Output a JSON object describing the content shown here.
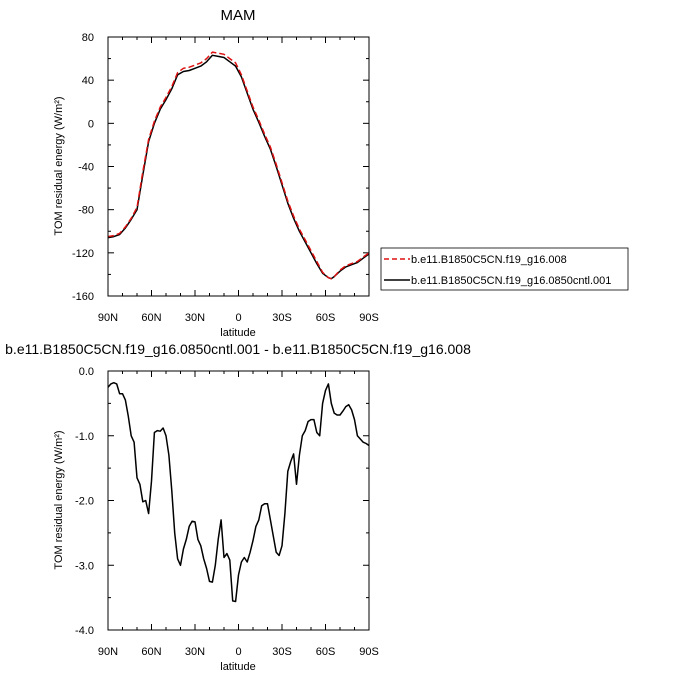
{
  "chart_data": [
    {
      "type": "line",
      "title": "MAM",
      "xlabel": "latitude",
      "ylabel": "TOM residual energy (W/m²)",
      "x_ticks": [
        "90N",
        "60N",
        "30N",
        "0",
        "30S",
        "60S",
        "90S"
      ],
      "y_ticks": [
        80,
        40,
        0,
        -40,
        -80,
        -120,
        -160
      ],
      "xlim": [
        90,
        -90
      ],
      "ylim": [
        -160,
        80
      ],
      "legend": "outside-right",
      "x": [
        90,
        86,
        82,
        78,
        74,
        70,
        66,
        62,
        58,
        54,
        50,
        46,
        42,
        38,
        34,
        30,
        26,
        22,
        18,
        14,
        10,
        6,
        2,
        -2,
        -6,
        -10,
        -14,
        -18,
        -22,
        -26,
        -30,
        -34,
        -38,
        -42,
        -46,
        -50,
        -54,
        -58,
        -62,
        -64,
        -66,
        -70,
        -74,
        -78,
        -82,
        -86,
        -90
      ],
      "series": [
        {
          "name": "b.e11.B1850C5CN.f19_g16.008",
          "color": "#dd1111",
          "dash": true,
          "values": [
            -105,
            -104,
            -102,
            -96,
            -88,
            -78,
            -45,
            -15,
            2,
            15,
            24,
            34,
            47,
            51,
            52,
            54,
            56,
            60,
            66,
            65,
            64,
            60,
            56,
            45,
            30,
            15,
            3,
            -10,
            -22,
            -38,
            -55,
            -72,
            -86,
            -98,
            -108,
            -118,
            -128,
            -138,
            -143,
            -144,
            -142,
            -136,
            -132,
            -130,
            -128,
            -124,
            -120
          ]
        },
        {
          "name": "b.e11.B1850C5CN.f19_g16.0850cntl.001",
          "color": "#000000",
          "dash": false,
          "values": [
            -106,
            -105,
            -103,
            -97,
            -89,
            -80,
            -48,
            -17,
            0,
            13,
            22,
            32,
            45,
            48,
            49,
            51,
            53,
            57,
            63,
            62,
            61,
            57,
            53,
            43,
            28,
            13,
            1,
            -12,
            -24,
            -40,
            -57,
            -74,
            -88,
            -100,
            -110,
            -120,
            -130,
            -139,
            -143,
            -144,
            -142,
            -137,
            -133,
            -131,
            -129,
            -125,
            -121
          ]
        }
      ]
    },
    {
      "type": "line",
      "title": "b.e11.B1850C5CN.f19_g16.0850cntl.001 - b.e11.B1850C5CN.f19_g16.008",
      "xlabel": "latitude",
      "ylabel": "TOM residual energy (W/m²)",
      "x_ticks": [
        "90N",
        "60N",
        "30N",
        "0",
        "30S",
        "60S",
        "90S"
      ],
      "y_ticks": [
        "0.0",
        "-1.0",
        "-2.0",
        "-3.0",
        "-4.0"
      ],
      "xlim": [
        90,
        -90
      ],
      "ylim": [
        -4,
        0
      ],
      "x": [
        90,
        88,
        86,
        84,
        82,
        80,
        78,
        76,
        74,
        72,
        70,
        68,
        66,
        64,
        62,
        60,
        58,
        56,
        54,
        52,
        50,
        48,
        46,
        44,
        42,
        40,
        38,
        36,
        34,
        32,
        30,
        28,
        26,
        24,
        22,
        20,
        18,
        16,
        14,
        12,
        10,
        8,
        6,
        4,
        2,
        0,
        -2,
        -4,
        -6,
        -8,
        -10,
        -12,
        -14,
        -16,
        -18,
        -20,
        -22,
        -24,
        -26,
        -28,
        -30,
        -32,
        -34,
        -36,
        -38,
        -40,
        -42,
        -44,
        -46,
        -48,
        -50,
        -52,
        -54,
        -56,
        -58,
        -60,
        -62,
        -64,
        -66,
        -68,
        -70,
        -72,
        -74,
        -76,
        -78,
        -80,
        -82,
        -84,
        -86,
        -88,
        -90
      ],
      "series": [
        {
          "name": "",
          "color": "#000000",
          "dash": false,
          "values": [
            -0.25,
            -0.2,
            -0.18,
            -0.2,
            -0.35,
            -0.35,
            -0.45,
            -0.7,
            -1.0,
            -1.1,
            -1.65,
            -1.75,
            -2.02,
            -2.0,
            -2.2,
            -1.7,
            -0.95,
            -0.92,
            -0.93,
            -0.88,
            -1.0,
            -1.3,
            -1.85,
            -2.5,
            -2.9,
            -3.0,
            -2.75,
            -2.6,
            -2.4,
            -2.32,
            -2.33,
            -2.6,
            -2.7,
            -2.9,
            -3.05,
            -3.25,
            -3.26,
            -3.0,
            -2.6,
            -2.3,
            -2.88,
            -2.82,
            -2.92,
            -3.55,
            -3.56,
            -3.15,
            -2.95,
            -2.88,
            -2.95,
            -2.8,
            -2.62,
            -2.4,
            -2.3,
            -2.08,
            -2.05,
            -2.05,
            -2.3,
            -2.55,
            -2.8,
            -2.85,
            -2.7,
            -2.2,
            -1.55,
            -1.4,
            -1.28,
            -1.75,
            -1.3,
            -1.0,
            -0.92,
            -0.78,
            -0.75,
            -0.75,
            -0.95,
            -1.0,
            -0.5,
            -0.3,
            -0.2,
            -0.5,
            -0.65,
            -0.68,
            -0.68,
            -0.62,
            -0.55,
            -0.52,
            -0.6,
            -0.75,
            -1.0,
            -1.05,
            -1.1,
            -1.12,
            -1.15
          ]
        }
      ]
    }
  ]
}
